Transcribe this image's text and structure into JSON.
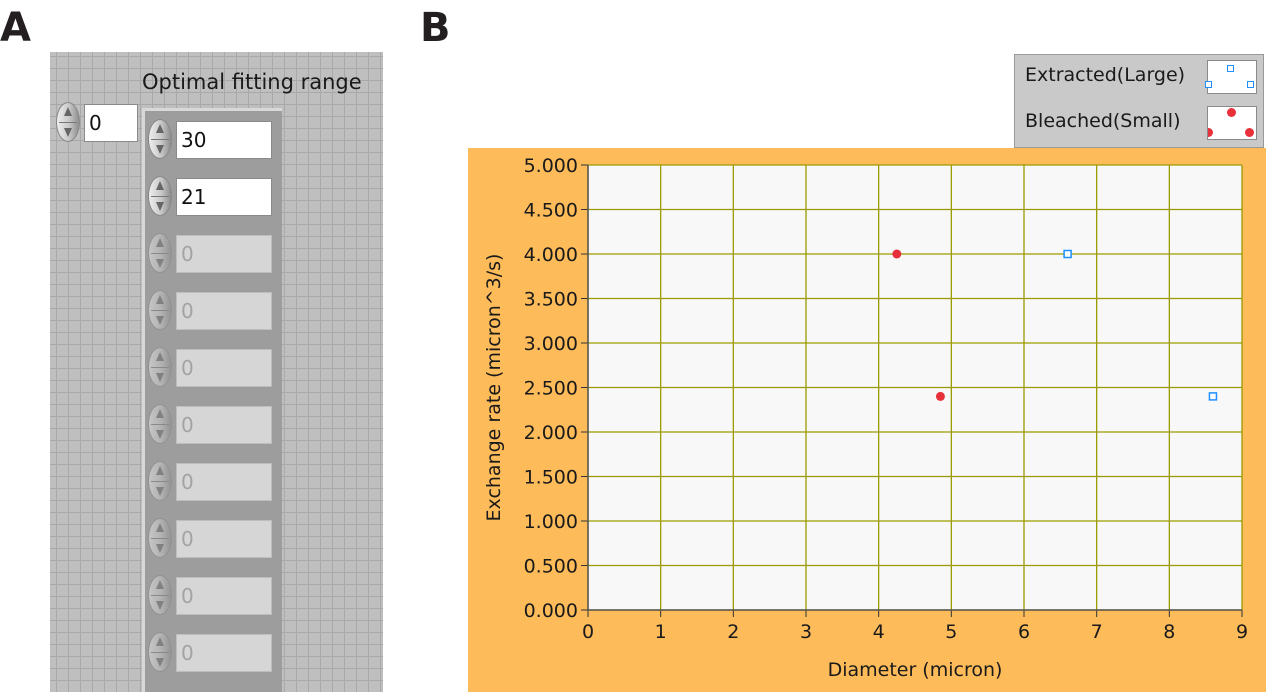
{
  "panel_a": {
    "letter": "A",
    "range_label": "Optimal fitting range",
    "index_value": "0",
    "values": [
      {
        "value": "30",
        "enabled": true
      },
      {
        "value": "21",
        "enabled": true
      },
      {
        "value": "0",
        "enabled": false
      },
      {
        "value": "0",
        "enabled": false
      },
      {
        "value": "0",
        "enabled": false
      },
      {
        "value": "0",
        "enabled": false
      },
      {
        "value": "0",
        "enabled": false
      },
      {
        "value": "0",
        "enabled": false
      },
      {
        "value": "0",
        "enabled": false
      },
      {
        "value": "0",
        "enabled": false
      }
    ]
  },
  "panel_b": {
    "letter": "B",
    "legend": [
      {
        "name": "Extracted(Large)",
        "marker": "open-square",
        "color": "#1e90ff"
      },
      {
        "name": "Bleached(Small)",
        "marker": "filled-circle",
        "color": "#e8303a"
      }
    ]
  },
  "chart_data": {
    "type": "scatter",
    "title": "",
    "xlabel": "Diameter (micron)",
    "ylabel": "Exchange rate (micron^3/s)",
    "xlim": [
      0,
      9
    ],
    "ylim": [
      0,
      5
    ],
    "xticks": [
      "0",
      "1",
      "2",
      "3",
      "4",
      "5",
      "6",
      "7",
      "8",
      "9"
    ],
    "yticks": [
      "0.000",
      "0.500",
      "1.000",
      "1.500",
      "2.000",
      "2.500",
      "3.000",
      "3.500",
      "4.000",
      "4.500",
      "5.000"
    ],
    "grid": true,
    "legend_position": "top-right",
    "plot_background": "#f8f8f8",
    "grid_color": "#9a9a00",
    "frame_color": "#fdbb5a",
    "series": [
      {
        "name": "Extracted(Large)",
        "marker": "open-square",
        "color": "#1e90ff",
        "x": [
          6.6,
          8.6
        ],
        "y": [
          4.0,
          2.4
        ]
      },
      {
        "name": "Bleached(Small)",
        "marker": "filled-circle",
        "color": "#e8303a",
        "x": [
          4.25,
          4.85
        ],
        "y": [
          4.0,
          2.4
        ]
      }
    ]
  }
}
